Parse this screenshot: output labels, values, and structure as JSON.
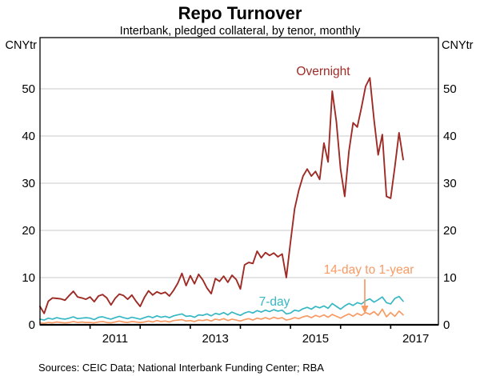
{
  "page": {
    "title": "Repo Turnover",
    "subtitle": "Interbank, pledged collateral, by tenor, monthly",
    "source_note": "Sources: CEIC Data; National Interbank Funding Center; RBA"
  },
  "chart_data": {
    "type": "line",
    "title": "Repo Turnover",
    "subtitle": "Interbank, pledged collateral, by tenor, monthly",
    "unit_label_left": "CNYtr",
    "unit_label_right": "CNYtr",
    "frequency": "monthly",
    "x_start": "2010-01",
    "x_end": "2017-04",
    "x_tick_years": [
      2011,
      2012,
      2013,
      2014,
      2015,
      2016,
      2017
    ],
    "x_label_years": [
      2011,
      2013,
      2015,
      2017
    ],
    "y_ticks": [
      0,
      10,
      20,
      30,
      40,
      50
    ],
    "ylim": [
      0,
      61
    ],
    "grid": "horizontal-only",
    "axis_color": "#000000",
    "grid_color": "#c9c9c9",
    "series": [
      {
        "key": "overnight",
        "name": "Overnight",
        "color": "#9e2b25",
        "values": [
          3.9,
          2.4,
          5.0,
          5.7,
          5.6,
          5.5,
          5.2,
          6.2,
          7.1,
          5.9,
          5.7,
          5.4,
          5.9,
          4.9,
          6.1,
          6.4,
          5.7,
          4.2,
          5.6,
          6.5,
          6.2,
          5.4,
          6.3,
          5.0,
          3.9,
          5.8,
          7.2,
          6.3,
          7.0,
          6.6,
          6.9,
          6.1,
          7.3,
          8.8,
          10.9,
          8.3,
          10.4,
          8.7,
          10.7,
          9.5,
          7.8,
          6.6,
          9.8,
          9.2,
          10.3,
          9.0,
          10.5,
          9.6,
          7.6,
          12.7,
          13.2,
          13.0,
          15.6,
          14.2,
          15.3,
          14.7,
          15.2,
          14.4,
          15.0,
          10.0,
          17.5,
          24.6,
          28.5,
          31.5,
          33.0,
          31.5,
          32.5,
          30.8,
          38.5,
          34.5,
          49.5,
          43.0,
          33.0,
          27.2,
          36.8,
          42.8,
          41.9,
          46.0,
          50.5,
          52.3,
          43.5,
          36.0,
          40.3,
          27.2,
          26.8,
          33.5,
          40.7,
          35.0
        ]
      },
      {
        "key": "seven_day",
        "name": "7-day",
        "color": "#36b7c4",
        "values": [
          1.2,
          1.0,
          1.4,
          1.2,
          1.5,
          1.3,
          1.2,
          1.4,
          1.7,
          1.3,
          1.4,
          1.5,
          1.4,
          1.1,
          1.6,
          1.7,
          1.4,
          1.2,
          1.5,
          1.8,
          1.5,
          1.3,
          1.6,
          1.4,
          1.2,
          1.5,
          1.8,
          1.5,
          1.9,
          1.6,
          1.8,
          1.5,
          1.9,
          2.1,
          2.3,
          1.8,
          1.9,
          1.6,
          2.1,
          2.0,
          2.3,
          1.9,
          2.4,
          2.2,
          2.6,
          2.1,
          2.7,
          2.3,
          2.0,
          2.5,
          2.8,
          2.5,
          3.0,
          2.7,
          3.1,
          2.8,
          3.2,
          2.9,
          3.1,
          2.3,
          2.5,
          3.1,
          2.9,
          3.4,
          3.7,
          3.3,
          3.9,
          3.6,
          4.0,
          3.5,
          4.5,
          3.9,
          3.3,
          4.0,
          4.5,
          4.1,
          4.7,
          4.4,
          5.1,
          5.5,
          4.8,
          5.3,
          5.9,
          4.7,
          4.4,
          5.6,
          6.0,
          5.0
        ]
      },
      {
        "key": "fourteen_day_to_1yr",
        "name": "14-day to 1-year",
        "color": "#f89a64",
        "values": [
          0.4,
          0.3,
          0.5,
          0.4,
          0.6,
          0.5,
          0.4,
          0.5,
          0.7,
          0.5,
          0.6,
          0.5,
          0.5,
          0.4,
          0.6,
          0.7,
          0.5,
          0.4,
          0.6,
          0.8,
          0.6,
          0.5,
          0.7,
          0.6,
          0.5,
          0.6,
          0.8,
          0.6,
          0.9,
          0.7,
          0.8,
          0.6,
          0.9,
          1.0,
          1.1,
          0.8,
          0.9,
          0.7,
          1.0,
          0.9,
          1.1,
          0.8,
          1.2,
          1.0,
          1.3,
          0.9,
          1.2,
          1.0,
          0.8,
          1.1,
          1.3,
          1.0,
          1.4,
          1.2,
          1.5,
          1.2,
          1.6,
          1.3,
          1.5,
          1.0,
          1.2,
          1.5,
          1.3,
          1.7,
          1.9,
          1.5,
          2.0,
          1.7,
          2.1,
          1.6,
          2.2,
          1.8,
          1.4,
          1.9,
          2.3,
          1.8,
          2.4,
          2.0,
          2.6,
          2.2,
          2.8,
          2.0,
          3.3,
          1.7,
          2.6,
          1.8,
          2.9,
          2.1
        ]
      }
    ],
    "annotations": [
      {
        "series": "overnight",
        "text": "Overnight",
        "arrow": false
      },
      {
        "series": "seven_day",
        "text": "7-day",
        "arrow": false
      },
      {
        "series": "fourteen_day_to_1yr",
        "text": "14-day to 1-year",
        "arrow": true
      }
    ]
  }
}
